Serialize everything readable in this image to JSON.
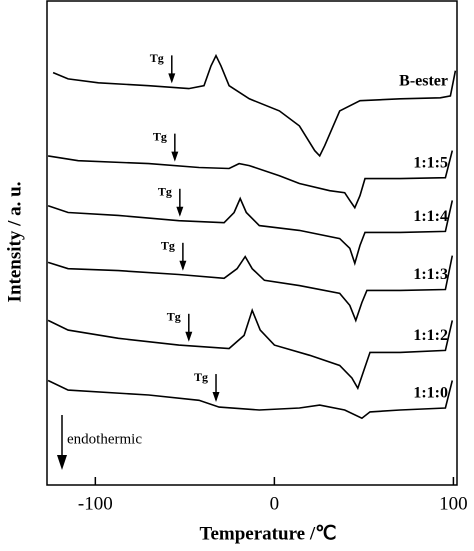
{
  "chart_data": {
    "type": "line",
    "xlabel": "Temperature /℃",
    "ylabel": "Intensity / a. u.",
    "xlim": [
      -127,
      102
    ],
    "xticks": [
      -100,
      0,
      100
    ],
    "ylim": [
      0,
      100
    ],
    "color": "#000000",
    "tg_label": "Tg",
    "annotation": "endothermic",
    "series": [
      {
        "name": "B-ester",
        "tg": -57.3,
        "x": [
          -123.6,
          -115.2,
          -98.3,
          -70.2,
          -47.8,
          -39.3,
          -35.4,
          -32.6,
          -29.8,
          -25.3,
          -14.0,
          2.8,
          14.0,
          22.5,
          25.3,
          28.1,
          36.5,
          47.8,
          70.2,
          92.7,
          98.3,
          101.1
        ],
        "values": [
          85.2,
          83.9,
          83.1,
          82.5,
          81.9,
          82.5,
          86.6,
          88.7,
          86.6,
          82.5,
          79.8,
          77.3,
          74.2,
          69.1,
          68.0,
          70.1,
          77.3,
          79.4,
          79.8,
          80.0,
          80.4,
          85.6
        ]
      },
      {
        "name": "1:1:5",
        "tg": -55.6,
        "x": [
          -126.4,
          -109.6,
          -70.2,
          -42.1,
          -25.3,
          -19.7,
          -14.0,
          2.8,
          14.0,
          30.9,
          39.3,
          42.1,
          44.9,
          47.8,
          50.6,
          70.2,
          95.5,
          99.4
        ],
        "values": [
          68.0,
          67.0,
          66.4,
          65.6,
          65.4,
          66.4,
          66.0,
          63.9,
          62.3,
          60.8,
          60.4,
          58.8,
          57.3,
          59.8,
          63.3,
          63.3,
          63.5,
          69.1
        ]
      },
      {
        "name": "1:1:4",
        "tg": -52.8,
        "x": [
          -126.4,
          -115.2,
          -87.1,
          -53.4,
          -28.1,
          -22.5,
          -19.1,
          -15.7,
          -8.4,
          14.0,
          36.5,
          42.1,
          44.9,
          47.8,
          50.6,
          70.2,
          95.5,
          99.4
        ],
        "values": [
          57.7,
          56.3,
          55.7,
          54.6,
          54.2,
          56.3,
          59.2,
          56.3,
          53.6,
          52.6,
          50.9,
          48.9,
          45.8,
          49.5,
          52.2,
          52.2,
          52.4,
          58.8
        ]
      },
      {
        "name": "1:1:3",
        "tg": -51.1,
        "x": [
          -126.4,
          -115.2,
          -87.1,
          -53.4,
          -28.1,
          -20.8,
          -16.3,
          -12.4,
          -5.6,
          14.0,
          36.5,
          42.1,
          45.5,
          48.9,
          51.7,
          70.2,
          95.5,
          99.4
        ],
        "values": [
          46.0,
          44.7,
          44.3,
          43.5,
          42.7,
          44.7,
          47.2,
          44.7,
          42.3,
          41.2,
          39.6,
          37.1,
          34.0,
          37.7,
          40.2,
          40.2,
          40.4,
          47.4
        ]
      },
      {
        "name": "1:1:2",
        "tg": -47.8,
        "x": [
          -126.4,
          -115.2,
          -87.1,
          -53.4,
          -25.3,
          -16.9,
          -12.4,
          -7.9,
          0,
          19.7,
          36.5,
          43.3,
          46.6,
          50.0,
          53.4,
          70.2,
          95.5,
          99.4
        ],
        "values": [
          34.0,
          32.0,
          30.3,
          28.9,
          28.2,
          30.9,
          36.1,
          32.0,
          28.9,
          26.8,
          24.7,
          22.1,
          20.0,
          23.7,
          27.4,
          27.4,
          27.8,
          34.0
        ]
      },
      {
        "name": "1:1:0",
        "tg": -32.6,
        "x": [
          -126.4,
          -115.2,
          -70.2,
          -42.1,
          -30.9,
          -8.4,
          14.0,
          25.3,
          39.3,
          48.9,
          53.4,
          70.2,
          95.5,
          99.4
        ],
        "values": [
          21.6,
          19.6,
          18.6,
          17.5,
          16.1,
          15.5,
          15.9,
          16.5,
          15.5,
          13.8,
          15.1,
          15.5,
          15.9,
          21.6
        ]
      }
    ]
  }
}
